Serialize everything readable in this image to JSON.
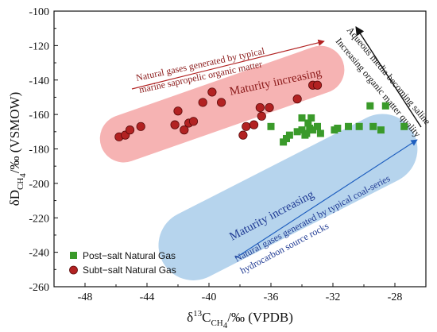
{
  "chart_data": {
    "type": "scatter",
    "xlabel": {
      "base": "δ",
      "sup": "13",
      "mid": "C",
      "sub": "CH",
      "sub2": "4",
      "tail": "/‰ (VPDB)"
    },
    "ylabel": {
      "base": "δD",
      "sub": "CH",
      "sub2": "4",
      "tail": "/‰ (VSMOW)"
    },
    "xlim": [
      -50,
      -26
    ],
    "ylim": [
      -260,
      -100
    ],
    "x_ticks": [
      -48,
      -44,
      -40,
      -36,
      -32,
      -28
    ],
    "y_ticks": [
      -260,
      -240,
      -220,
      -200,
      -180,
      -160,
      -140,
      -120,
      -100
    ],
    "grid": false,
    "legend_position": "bottom-left",
    "series": [
      {
        "name": "Post−salt Natural Gas",
        "marker": "square",
        "color": "#3a9a2a",
        "points": [
          [
            -36.0,
            -167
          ],
          [
            -35.2,
            -176
          ],
          [
            -35.0,
            -174
          ],
          [
            -34.8,
            -172
          ],
          [
            -34.3,
            -170
          ],
          [
            -34.0,
            -169
          ],
          [
            -33.7,
            -171
          ],
          [
            -33.5,
            -168
          ],
          [
            -34.0,
            -162
          ],
          [
            -33.6,
            -165
          ],
          [
            -33.3,
            -169
          ],
          [
            -33.0,
            -167
          ],
          [
            -32.8,
            -171
          ],
          [
            -33.8,
            -172
          ],
          [
            -33.4,
            -162
          ],
          [
            -31.7,
            -168
          ],
          [
            -31.0,
            -167
          ],
          [
            -31.9,
            -169
          ],
          [
            -30.3,
            -167
          ],
          [
            -29.6,
            -155
          ],
          [
            -29.4,
            -167
          ],
          [
            -28.9,
            -169
          ],
          [
            -28.6,
            -155
          ],
          [
            -27.4,
            -167
          ]
        ]
      },
      {
        "name": "Subt−salt Natural Gas",
        "marker": "circle",
        "color": "#b22222",
        "points": [
          [
            -45.8,
            -173
          ],
          [
            -45.4,
            -172
          ],
          [
            -45.1,
            -169
          ],
          [
            -44.4,
            -167
          ],
          [
            -42.2,
            -166
          ],
          [
            -42.0,
            -158
          ],
          [
            -41.6,
            -169
          ],
          [
            -41.3,
            -165
          ],
          [
            -41.0,
            -164
          ],
          [
            -40.4,
            -153
          ],
          [
            -39.8,
            -147
          ],
          [
            -39.2,
            -153
          ],
          [
            -37.8,
            -172
          ],
          [
            -37.6,
            -167
          ],
          [
            -37.1,
            -166
          ],
          [
            -36.7,
            -156
          ],
          [
            -36.6,
            -161
          ],
          [
            -36.1,
            -156
          ],
          [
            -34.3,
            -151
          ],
          [
            -33.3,
            -143
          ],
          [
            -33.0,
            -143
          ]
        ]
      }
    ],
    "regions": [
      {
        "name": "red-band",
        "color": "#f4a6a6",
        "from": [
          -45.5,
          -174
        ],
        "to": [
          -32.8,
          -134
        ],
        "halfwidth": 15
      },
      {
        "name": "blue-band",
        "color": "#a9cdea",
        "from": [
          -41.0,
          -236
        ],
        "to": [
          -28.8,
          -180
        ],
        "halfwidth": 22
      }
    ],
    "annotations": {
      "red_note_line1": "Natural gases generated by typical",
      "red_note_line2": "marine sapropelic organic matter",
      "red_maturity": "Maturity increasing",
      "blue_maturity": "Maturity increasing",
      "blue_note_line1": "Natural gases generated by typical coal-series",
      "blue_note_line2": "hydrocarbon source rocks",
      "black_note_line1": "Aqueous media becoming saline",
      "black_note_line2": "Increasing organic matter quality"
    }
  }
}
